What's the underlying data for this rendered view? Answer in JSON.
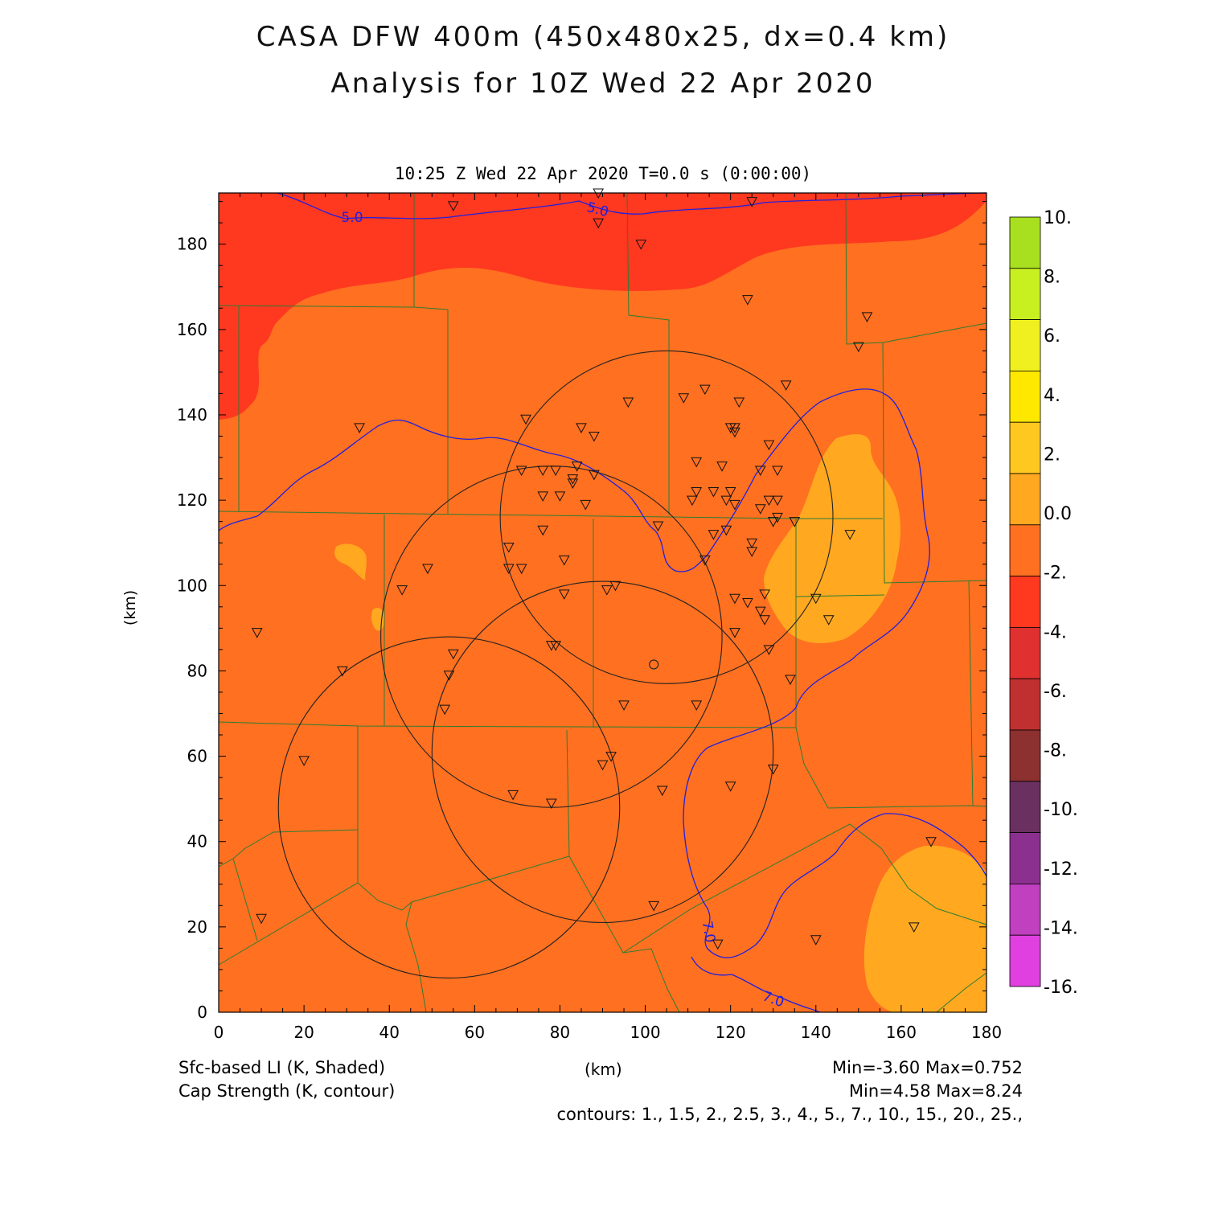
{
  "title": {
    "line1": "CASA DFW 400m (450x480x25, dx=0.4 km)",
    "line2": "Analysis for 10Z Wed 22 Apr 2020"
  },
  "subtitle": "10:25 Z Wed 22 Apr 2020    T=0.0 s (0:00:00)",
  "axes": {
    "xlabel": "(km)",
    "ylabel": "(km)",
    "xticks": [
      "0",
      "20",
      "40",
      "60",
      "80",
      "100",
      "120",
      "140",
      "160",
      "180"
    ],
    "yticks": [
      "0",
      "20",
      "40",
      "60",
      "80",
      "100",
      "120",
      "140",
      "160",
      "180"
    ],
    "xrange": [
      0,
      180
    ],
    "yrange": [
      0,
      192
    ]
  },
  "colorbar": {
    "labels": [
      "10.",
      "8.",
      "6.",
      "4.",
      "2.",
      "0.0",
      "-2.",
      "-4.",
      "-6.",
      "-8.",
      "-10.",
      "-12.",
      "-14.",
      "-16."
    ],
    "colors": [
      "#a8e020",
      "#c8f020",
      "#f0f020",
      "#ffe800",
      "#ffc820",
      "#ffa820",
      "#ff7020",
      "#ff3820",
      "#e03030",
      "#c03030",
      "#8c3030",
      "#6a3060",
      "#8c3090",
      "#c040c0",
      "#e040e0"
    ]
  },
  "field_colors": {
    "background": "#ff7020",
    "north_band": "#ff3820",
    "warm_patch": "#ffa820",
    "cap_contour": "#2020e0",
    "counties": "#2e7d32",
    "radar_range": "#222222"
  },
  "contour_labels": [
    "5.0",
    "5.0",
    "7.0",
    "7.0"
  ],
  "footer": {
    "left1": "Sfc-based LI (K, Shaded)",
    "left2": "Cap Strength (K, contour)",
    "center": "(km)",
    "right1": "Min=-3.60 Max=0.752",
    "right2": "Min=4.58 Max=8.24",
    "contours": "contours: 1., 1.5, 2., 2.5, 3., 4., 5., 7., 10., 15., 20., 25.,"
  },
  "radars": [
    {
      "x": 105,
      "y": 116,
      "r": 39
    },
    {
      "x": 78,
      "y": 88,
      "r": 40
    },
    {
      "x": 90,
      "y": 61,
      "r": 40
    },
    {
      "x": 54,
      "y": 48,
      "r": 40
    }
  ],
  "center_marker": {
    "x": 102,
    "y": 81.5
  },
  "stations": [
    [
      55,
      189
    ],
    [
      89,
      192
    ],
    [
      125,
      190
    ],
    [
      89,
      185
    ],
    [
      99,
      180
    ],
    [
      124,
      167
    ],
    [
      152,
      163
    ],
    [
      150,
      156
    ],
    [
      33,
      137
    ],
    [
      72,
      139
    ],
    [
      85,
      137
    ],
    [
      88,
      135
    ],
    [
      96,
      143
    ],
    [
      109,
      144
    ],
    [
      114,
      146
    ],
    [
      122,
      143
    ],
    [
      133,
      147
    ],
    [
      120,
      137
    ],
    [
      121,
      137
    ],
    [
      121,
      136
    ],
    [
      129,
      133
    ],
    [
      76,
      127
    ],
    [
      71,
      127
    ],
    [
      79,
      127
    ],
    [
      84,
      128
    ],
    [
      83,
      125
    ],
    [
      88,
      126
    ],
    [
      83,
      124
    ],
    [
      80,
      121
    ],
    [
      76,
      121
    ],
    [
      86,
      119
    ],
    [
      112,
      129
    ],
    [
      118,
      128
    ],
    [
      127,
      127
    ],
    [
      131,
      127
    ],
    [
      116,
      122
    ],
    [
      112,
      122
    ],
    [
      120,
      122
    ],
    [
      111,
      120
    ],
    [
      119,
      120
    ],
    [
      121,
      119
    ],
    [
      129,
      120
    ],
    [
      131,
      120
    ],
    [
      127,
      118
    ],
    [
      131,
      116
    ],
    [
      130,
      115
    ],
    [
      135,
      115
    ],
    [
      103,
      114
    ],
    [
      116,
      112
    ],
    [
      119,
      113
    ],
    [
      76,
      113
    ],
    [
      125,
      110
    ],
    [
      125,
      108
    ],
    [
      148,
      112
    ],
    [
      68,
      109
    ],
    [
      68,
      104
    ],
    [
      71,
      104
    ],
    [
      81,
      106
    ],
    [
      114,
      106
    ],
    [
      49,
      104
    ],
    [
      43,
      99
    ],
    [
      81,
      98
    ],
    [
      91,
      99
    ],
    [
      93,
      100
    ],
    [
      121,
      97
    ],
    [
      124,
      96
    ],
    [
      128,
      98
    ],
    [
      127,
      94
    ],
    [
      128,
      92
    ],
    [
      140,
      97
    ],
    [
      143,
      92
    ],
    [
      121,
      89
    ],
    [
      9,
      89
    ],
    [
      29,
      80
    ],
    [
      78,
      86
    ],
    [
      79,
      86
    ],
    [
      55,
      84
    ],
    [
      54,
      79
    ],
    [
      129,
      85
    ],
    [
      134,
      78
    ],
    [
      53,
      71
    ],
    [
      95,
      72
    ],
    [
      112,
      72
    ],
    [
      20,
      59
    ],
    [
      92,
      60
    ],
    [
      90,
      58
    ],
    [
      130,
      57
    ],
    [
      120,
      53
    ],
    [
      104,
      52
    ],
    [
      69,
      51
    ],
    [
      78,
      49
    ],
    [
      167,
      40
    ],
    [
      102,
      25
    ],
    [
      10,
      22
    ],
    [
      117,
      16
    ],
    [
      140,
      17
    ],
    [
      163,
      20
    ]
  ]
}
